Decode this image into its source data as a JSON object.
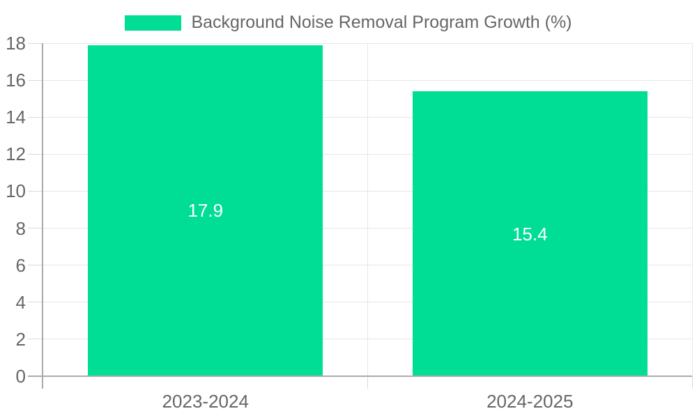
{
  "legend": {
    "label": "Background Noise Removal Program Growth (%)"
  },
  "chart_data": {
    "type": "bar",
    "title": "Background Noise Removal Program Growth (%)",
    "categories": [
      "2023-2024",
      "2024-2025"
    ],
    "values": [
      17.9,
      15.4
    ],
    "bar_labels": [
      "17.9",
      "15.4"
    ],
    "xlabel": "",
    "ylabel": "",
    "ylim": [
      0,
      18
    ],
    "yticks": [
      0,
      2,
      4,
      6,
      8,
      10,
      12,
      14,
      16,
      18
    ],
    "grid": true,
    "legend_position": "top"
  },
  "colors": {
    "bar": "#00DE95",
    "bar_label": "#ffffff",
    "grid": "#e6e6e6",
    "tick": "#d9d9d9",
    "axis": "#ababab",
    "text": "#666666"
  }
}
